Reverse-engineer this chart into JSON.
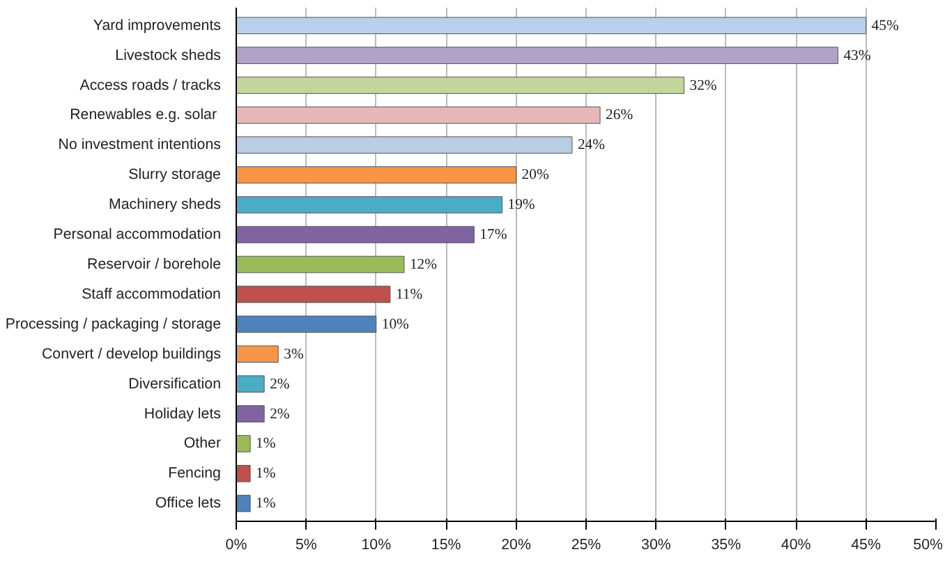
{
  "chart_data": {
    "type": "bar",
    "orientation": "horizontal",
    "categories": [
      "Yard improvements",
      "Livestock sheds",
      "Access roads / tracks",
      "Renewables e.g.  solar",
      "No investment intentions",
      "Slurry storage",
      "Machinery sheds",
      "Personal accommodation",
      "Reservoir / borehole",
      "Staff accommodation",
      "Processing / packaging / storage",
      "Convert / develop buildings",
      "Diversification",
      "Holiday lets",
      "Other",
      "Fencing",
      "Office lets"
    ],
    "values": [
      45,
      43,
      32,
      26,
      24,
      20,
      19,
      17,
      12,
      11,
      10,
      3,
      2,
      2,
      1,
      1,
      1
    ],
    "value_labels": [
      "45%",
      "43%",
      "32%",
      "26%",
      "24%",
      "20%",
      "19%",
      "17%",
      "12%",
      "11%",
      "10%",
      "3%",
      "2%",
      "2%",
      "1%",
      "1%",
      "1%"
    ],
    "colors": [
      "#b7d0ec",
      "#b3a2c7",
      "#c3d69b",
      "#e6b9b8",
      "#b9cde5",
      "#f79646",
      "#4bacc6",
      "#8064a2",
      "#9bbb59",
      "#c0504d",
      "#4f81bd",
      "#f79646",
      "#4bacc6",
      "#8064a2",
      "#9bbb59",
      "#c0504d",
      "#4f81bd"
    ],
    "xlim": [
      0,
      50
    ],
    "xticks": [
      {
        "value": 0,
        "label": "0%"
      },
      {
        "value": 5,
        "label": "5%"
      },
      {
        "value": 10,
        "label": "10%"
      },
      {
        "value": 15,
        "label": "15%"
      },
      {
        "value": 20,
        "label": "20%"
      },
      {
        "value": 25,
        "label": "25%"
      },
      {
        "value": 30,
        "label": "30%"
      },
      {
        "value": 35,
        "label": "35%"
      },
      {
        "value": 40,
        "label": "40%"
      },
      {
        "value": 45,
        "label": "45%"
      },
      {
        "value": 50,
        "label": "50%"
      }
    ],
    "grid": "x"
  }
}
